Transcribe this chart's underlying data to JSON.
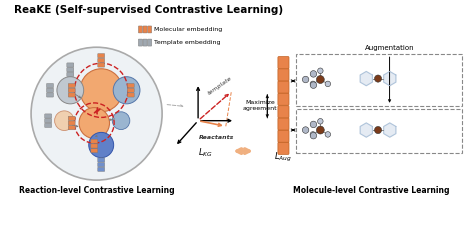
{
  "title": "ReaKE (Self-supervised Contrastive Learning)",
  "title_fontsize": 7.5,
  "bg_color": "#ffffff",
  "orange": "#E8834A",
  "orange_light": "#F0B080",
  "orange_fill": "#F2A870",
  "blue_circle_edge": "#6688AA",
  "blue_circle_fill": "#AAC0D8",
  "gray_circle_edge": "#999999",
  "gray_circle_fill": "#C8D0D8",
  "peach_fill": "#F0D0B0",
  "blue_dot_fill": "#6080BB",
  "red_arrow": "#CC2222",
  "dark_brown": "#7B3B1A",
  "embed_orange": "#E8834A",
  "embed_gray": "#A0A8B0",
  "label_reaction": "Reaction-level Contrastive Learning",
  "label_molecule": "Molecule-level Contrastive Learning",
  "label_maximize": "Maximize\nagreement",
  "label_augmentation": "Augmentation",
  "label_lkg": "$L_{KG}$",
  "label_laug": "$L_{Aug}$",
  "label_template": "template",
  "label_reactants": "Reactants",
  "label_mol_embed": "Molecular embedding",
  "label_tmpl_embed": "Template embedding"
}
